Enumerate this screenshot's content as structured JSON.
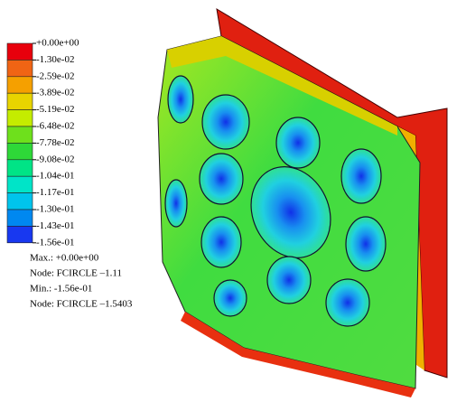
{
  "legend": {
    "labels": [
      "+0.00e+00",
      "-1.30e-02",
      "-2.59e-02",
      "-3.89e-02",
      "-5.19e-02",
      "-6.48e-02",
      "-7.78e-02",
      "-9.08e-02",
      "-1.04e-01",
      "-1.17e-01",
      "-1.30e-01",
      "-1.43e-01",
      "-1.56e-01"
    ],
    "colors": [
      "#e8000c",
      "#f06414",
      "#f5a000",
      "#e8d400",
      "#c4ec00",
      "#6ee01c",
      "#2ed838",
      "#00e486",
      "#00e4c8",
      "#00c4ec",
      "#0088f0",
      "#1838f0"
    ]
  },
  "info": [
    "Max.: +0.00e+00",
    "Node: FCIRCLE –1.11",
    "Min.: -1.56e-01",
    "Node: FCIRCLE –1.5403"
  ]
}
